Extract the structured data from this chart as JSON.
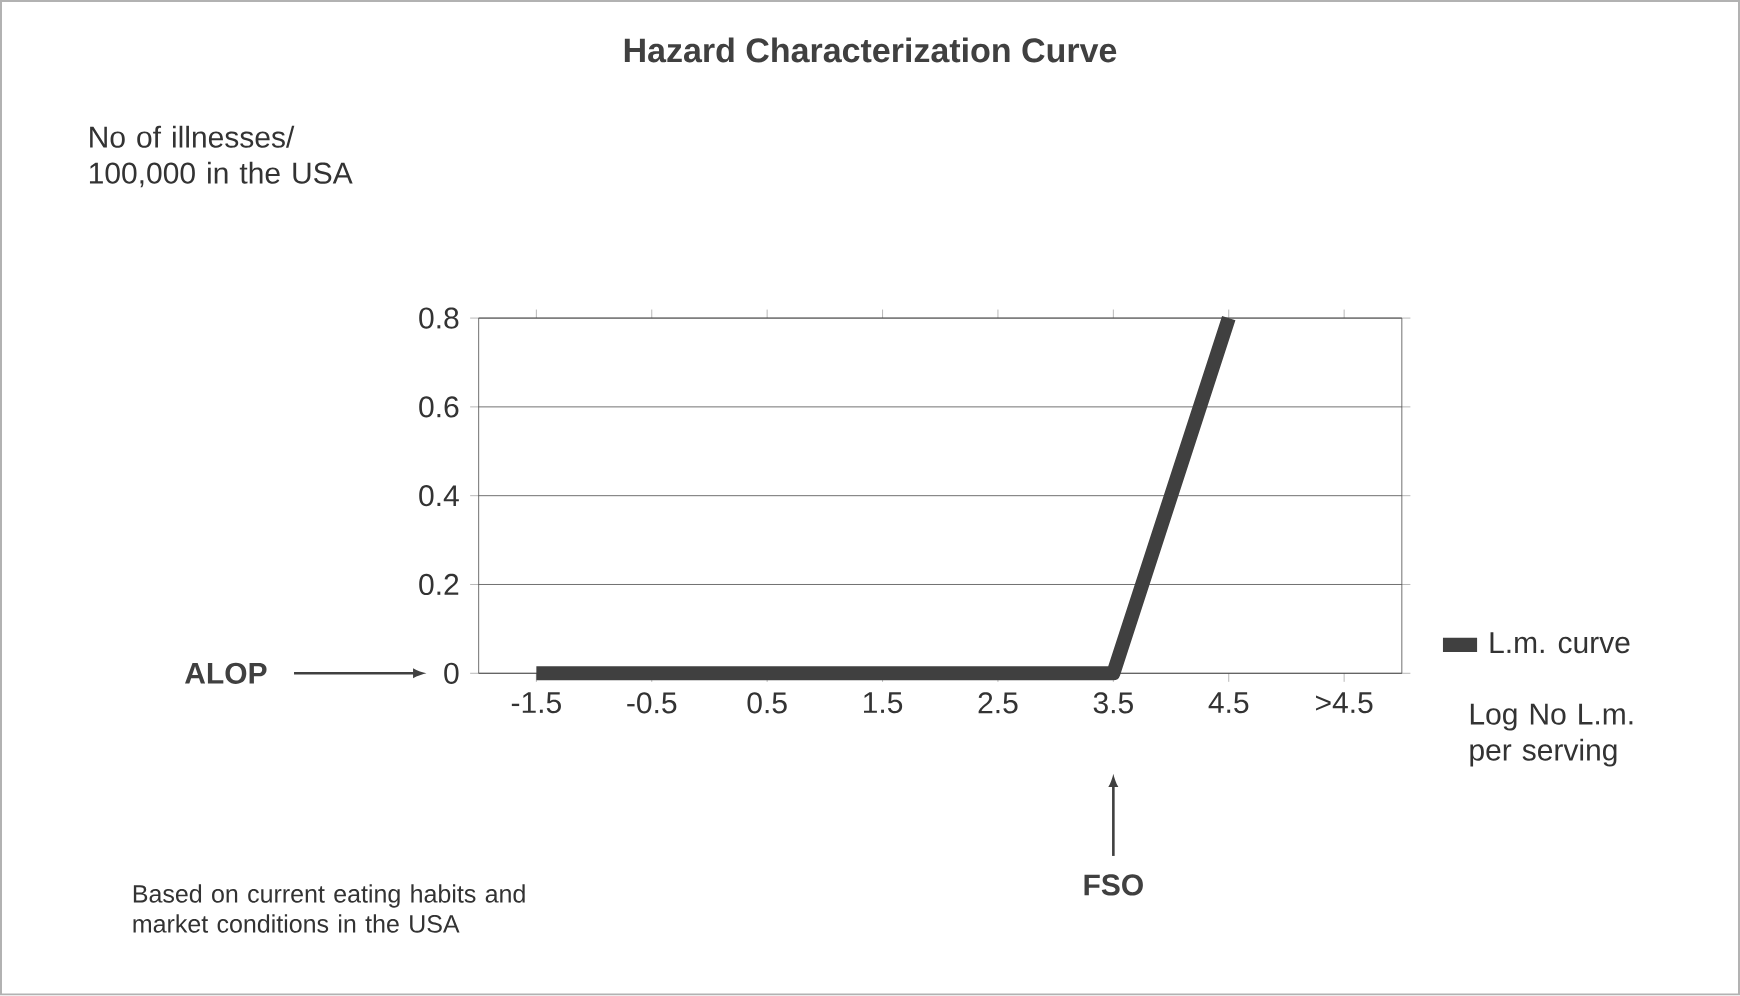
{
  "chart_data": {
    "type": "line",
    "title": "Hazard  Characterization Curve",
    "ylabel": "No of illnesses/ 100,000 in the USA",
    "xlabel": "Log No L.m. per serving",
    "categories": [
      "-1.5",
      "-0.5",
      "0.5",
      "1.5",
      "2.5",
      "3.5",
      "4.5",
      ">4.5"
    ],
    "series": [
      {
        "name": "L.m. curve",
        "color": "#404040",
        "values": [
          0,
          0,
          0,
          0,
          0,
          0,
          0.8,
          null
        ]
      }
    ],
    "ylim": [
      0,
      0.8
    ],
    "yticks": [
      0,
      0.2,
      0.4,
      0.6,
      0.8
    ],
    "grid": "y",
    "legend": "right",
    "annotations": [
      "ALOP",
      {
        "text": "FSO",
        "x": "3.5"
      },
      "Based on current eating habits and market conditions in the USA"
    ]
  }
}
